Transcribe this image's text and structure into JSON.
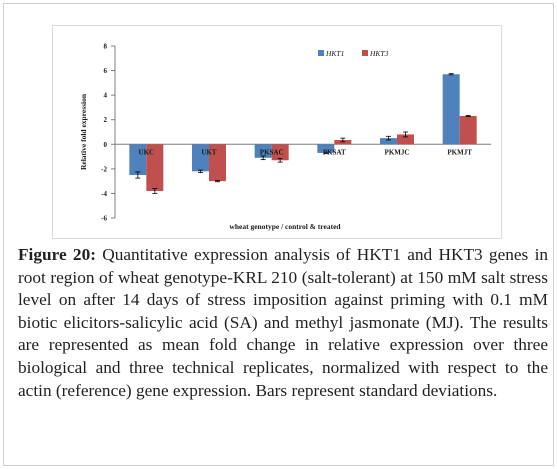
{
  "chart_data": {
    "type": "bar",
    "categories": [
      "UKC",
      "UKT",
      "PKSAC",
      "PKSAT",
      "PKMJC",
      "PKMJT"
    ],
    "series": [
      {
        "name": "HKT1",
        "color": "#4f81bd",
        "values": [
          -2.5,
          -2.2,
          -1.1,
          -0.7,
          0.5,
          5.7
        ],
        "errors": [
          0.25,
          0.1,
          0.15,
          0.05,
          0.15,
          0.05
        ]
      },
      {
        "name": "HKT3",
        "color": "#c0504d",
        "values": [
          -3.8,
          -3.0,
          -1.3,
          0.35,
          0.8,
          2.3
        ],
        "errors": [
          0.2,
          0.05,
          0.15,
          0.15,
          0.2,
          0.05
        ]
      }
    ],
    "xlabel": "wheat genotype / control & treated",
    "ylabel": "Relative fold expression",
    "ylim": [
      -6,
      8
    ],
    "yticks": [
      -6,
      -4,
      -2,
      0,
      2,
      4,
      6,
      8
    ],
    "legend_position": "top-right",
    "grid": false
  },
  "caption": {
    "figure_label": "Figure 20:",
    "text": "Quantitative expression analysis of HKT1 and HKT3 genes in root region of wheat genotype-KRL 210 (salt-tolerant) at 150 mM salt stress level on after 14 days of stress imposition against priming with 0.1 mM biotic elicitors-salicylic acid (SA) and methyl jasmonate (MJ). The results are represented as mean fold change in relative expression over three biological and three technical replicates, normalized with respect to the actin (reference) gene expression. Bars represent standard deviations."
  }
}
